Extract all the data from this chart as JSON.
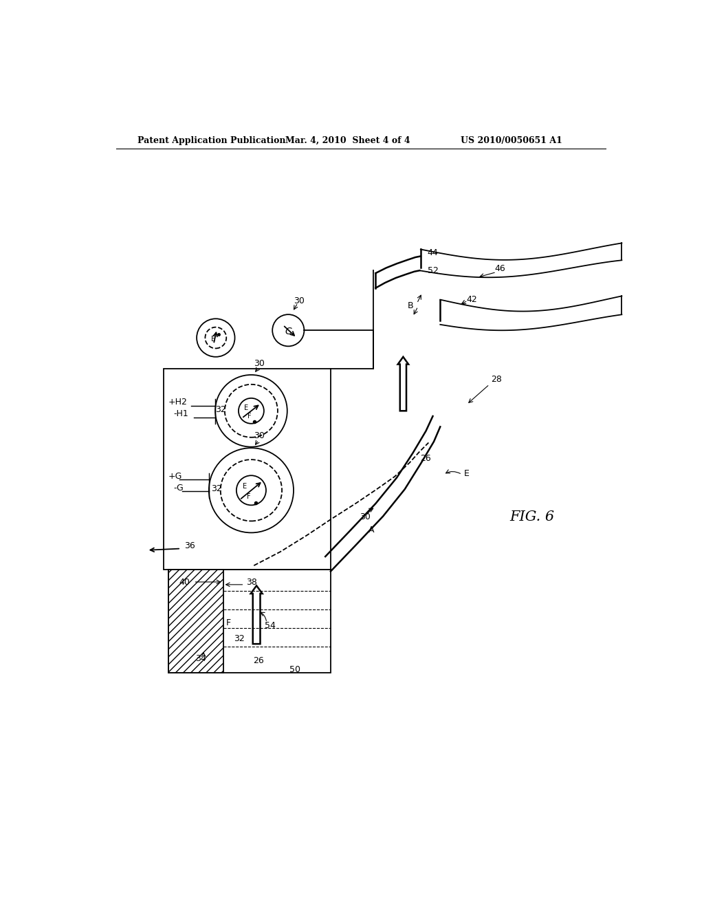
{
  "bg_color": "#ffffff",
  "header_left": "Patent Application Publication",
  "header_center": "Mar. 4, 2010  Sheet 4 of 4",
  "header_right": "US 2010/0050651 A1",
  "fig_label": "FIG. 6"
}
